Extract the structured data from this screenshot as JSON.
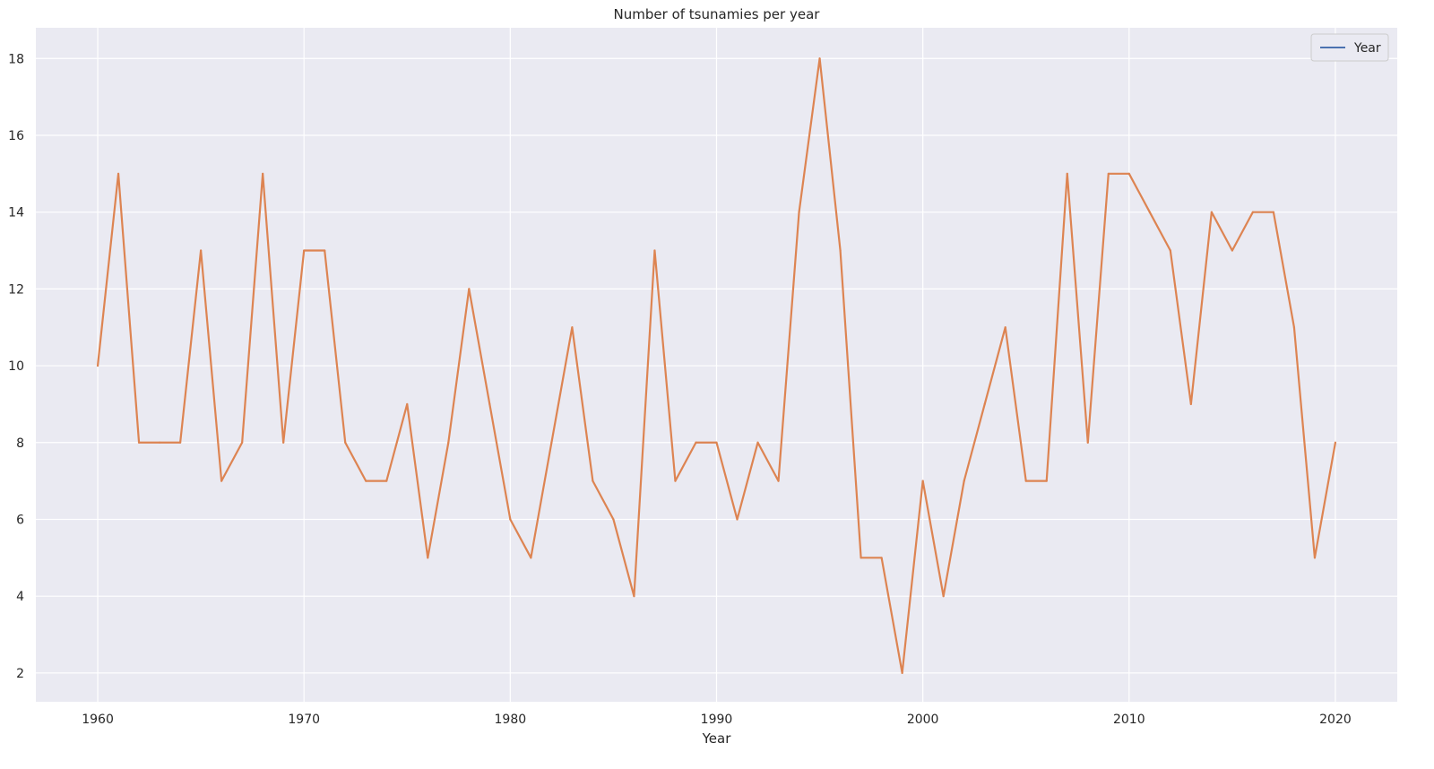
{
  "chart_data": {
    "type": "line",
    "title": "Number of tsunamies per year",
    "xlabel": "Year",
    "ylabel": "",
    "xlim": [
      1957,
      2023
    ],
    "ylim": [
      1.25,
      18.8
    ],
    "xticks": [
      1960,
      1970,
      1980,
      1990,
      2000,
      2010,
      2020
    ],
    "yticks": [
      2,
      4,
      6,
      8,
      10,
      12,
      14,
      16,
      18
    ],
    "grid": true,
    "legend_placement": "top-right",
    "legend": [
      {
        "label": "Year",
        "color": "#4c72b0"
      }
    ],
    "x": [
      1960,
      1961,
      1962,
      1963,
      1964,
      1965,
      1966,
      1967,
      1968,
      1969,
      1970,
      1971,
      1972,
      1973,
      1974,
      1975,
      1976,
      1977,
      1978,
      1979,
      1980,
      1981,
      1982,
      1983,
      1984,
      1985,
      1986,
      1987,
      1988,
      1989,
      1990,
      1991,
      1992,
      1993,
      1994,
      1995,
      1996,
      1997,
      1998,
      1999,
      2000,
      2001,
      2002,
      2003,
      2004,
      2005,
      2006,
      2007,
      2008,
      2009,
      2010,
      2011,
      2012,
      2013,
      2014,
      2015,
      2016,
      2017,
      2018,
      2019,
      2020
    ],
    "series": [
      {
        "color": "#dd8452",
        "values": [
          10,
          15,
          8,
          8,
          8,
          13,
          7,
          8,
          15,
          8,
          13,
          13,
          8,
          7,
          7,
          9,
          5,
          8,
          12,
          9,
          6,
          5,
          8,
          11,
          7,
          6,
          4,
          13,
          7,
          8,
          8,
          6,
          8,
          7,
          14,
          18,
          13,
          5,
          5,
          2,
          7,
          4,
          7,
          9,
          11,
          7,
          7,
          15,
          8,
          15,
          15,
          14,
          13,
          9,
          14,
          13,
          14,
          14,
          11,
          5,
          8
        ]
      }
    ]
  },
  "colors": {
    "plot_background": "#eaeaf2",
    "grid": "#ffffff",
    "page_background": "#ffffff"
  }
}
